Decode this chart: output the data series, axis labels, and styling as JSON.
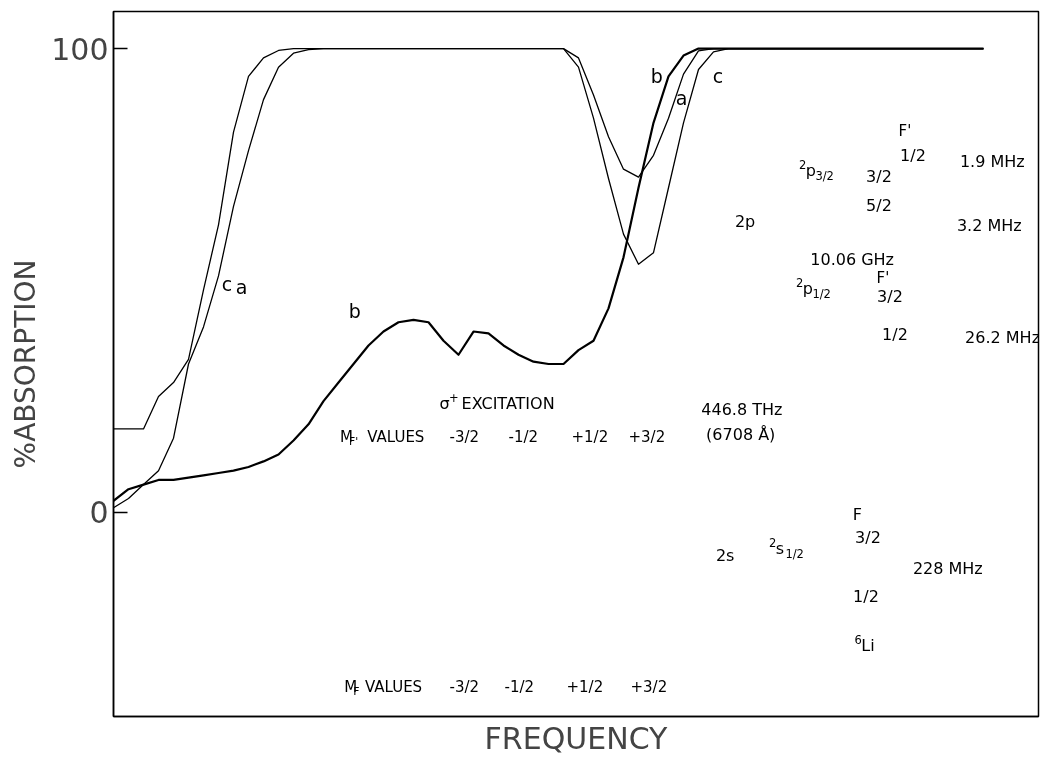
{
  "chart_data": {
    "type": "line",
    "xlabel": "FREQUENCY",
    "ylabel": "%ABSORPTION",
    "categories": [
      null,
      null,
      null,
      null,
      null,
      null,
      null,
      null,
      null,
      null,
      null,
      null,
      null,
      null,
      null,
      null,
      null,
      null,
      null,
      null,
      null,
      null,
      null,
      null,
      null,
      null,
      null,
      null,
      null,
      null,
      null,
      null,
      null,
      null,
      null,
      null,
      null,
      null,
      null,
      null,
      null,
      null,
      null,
      null,
      null,
      null,
      null,
      null,
      null,
      null,
      null,
      null,
      null,
      null,
      null,
      null,
      null,
      null,
      null
    ],
    "ylim": [
      -44,
      108
    ],
    "yticks": [
      0,
      100
    ],
    "tick_labels": "y",
    "grid": false,
    "legend": false,
    "series": [
      {
        "name": "a",
        "color": "#000000",
        "values": [
          1,
          3,
          6,
          9,
          16,
          32,
          40,
          51,
          66,
          78,
          89,
          96,
          99,
          99.8,
          100,
          100,
          100,
          100,
          100,
          100,
          100,
          100,
          100,
          100,
          100,
          100,
          100,
          100,
          100,
          100,
          100,
          98,
          90,
          81,
          74,
          72.3,
          77,
          85,
          94.5,
          99.5,
          100,
          100,
          100,
          100,
          100,
          100,
          100,
          100,
          100,
          100,
          100,
          100,
          100,
          100,
          100,
          100,
          100,
          100,
          100
        ]
      },
      {
        "name": "b",
        "color": "#000000",
        "values": [
          2.5,
          5,
          6,
          7,
          7,
          7.5,
          8,
          8.5,
          9,
          9.8,
          11,
          12.5,
          15.5,
          19,
          24,
          28,
          32,
          36,
          39,
          41,
          41.5,
          41,
          37,
          34,
          39,
          38.6,
          36,
          34,
          32.5,
          32,
          32,
          35,
          37,
          44,
          55,
          70,
          84,
          94,
          98.5,
          100,
          100,
          100,
          100,
          100,
          100,
          100,
          100,
          100,
          100,
          100,
          100,
          100,
          100,
          100,
          100,
          100,
          100,
          100,
          100
        ]
      },
      {
        "name": "c",
        "color": "#000000",
        "values": [
          18,
          18,
          18,
          25,
          28,
          33,
          48,
          62,
          82,
          94,
          98,
          99.6,
          100,
          100,
          100,
          100,
          100,
          100,
          100,
          100,
          100,
          100,
          100,
          100,
          100,
          100,
          100,
          100,
          100,
          100,
          100,
          96,
          85,
          72,
          60,
          53.5,
          56,
          70,
          84,
          95.5,
          99.3,
          100,
          100,
          100,
          100,
          100,
          100,
          100,
          100,
          100,
          100,
          100,
          100,
          100,
          100,
          100,
          100,
          100,
          100
        ]
      }
    ],
    "annotations": [
      "σ$^{+}$ EXCITATION",
      "M$_{F'}$ VALUES",
      "-3/2",
      "-1/2",
      "+1/2",
      "+3/2",
      "M$_{F}$ VALUES",
      "-3/2",
      "-1/2",
      "+1/2",
      "+3/2",
      "2p",
      "$^{2}$p$_{3/2}$",
      "3/2",
      "5/2",
      "F'",
      "1/2",
      "1.9 MHz",
      "3.2 MHz",
      "10.06 GHz",
      "$^{2}$p$_{1/2}$",
      "F'",
      "3/2",
      "1/2",
      "26.2 MHz",
      "446.8 THz",
      "(6708 Å)",
      "2s",
      "$^{2}$s$_{1/2}$",
      "F",
      "3/2",
      "228 MHz",
      "1/2",
      "$^{6}$Li"
    ]
  }
}
